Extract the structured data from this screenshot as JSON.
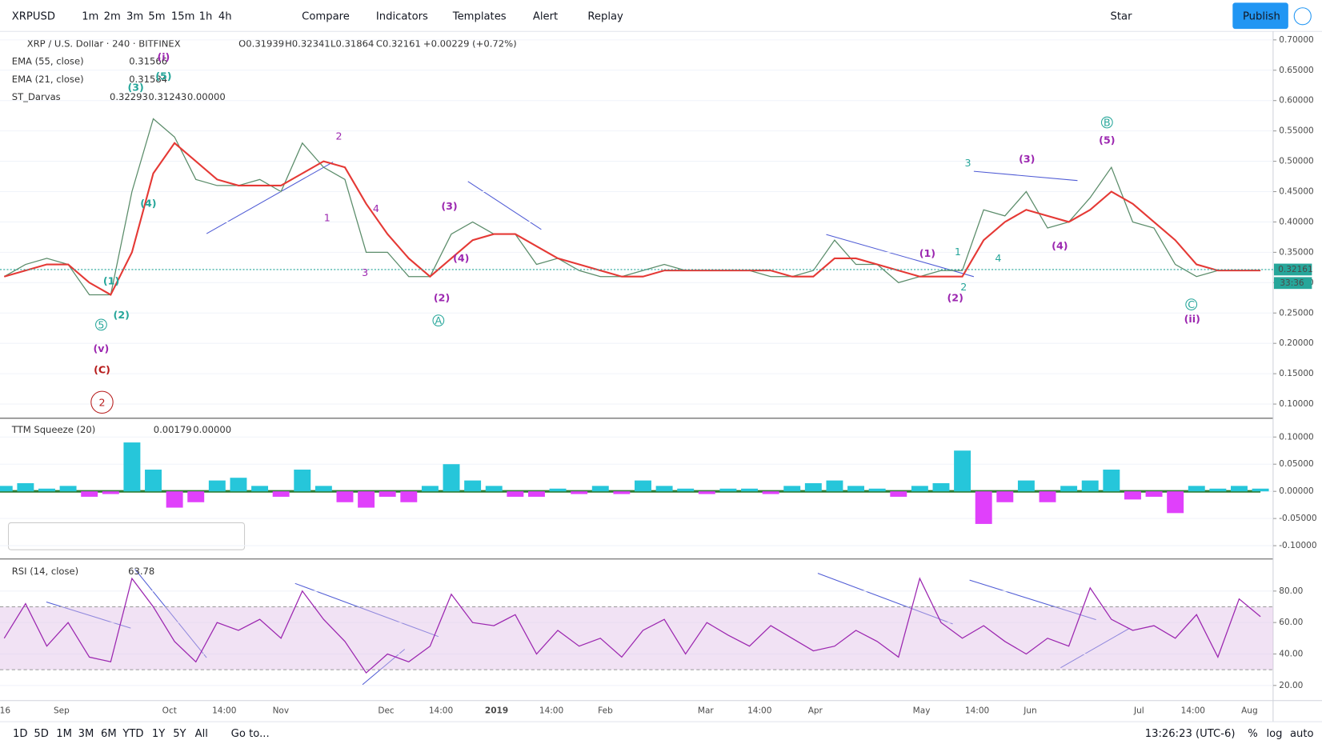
{
  "toolbar": {
    "symbol": "XRPUSD",
    "intervals": [
      "1m",
      "2m",
      "3m",
      "5m",
      "15m",
      "1h",
      "4h"
    ],
    "compare": "Compare",
    "indicators": "Indicators",
    "templates": "Templates",
    "alert": "Alert",
    "replay": "Replay",
    "star": "Star",
    "publish": "Publish"
  },
  "legend": {
    "title": "XRP / U.S. Dollar · 240 · BITFINEX",
    "open": "O0.31939",
    "high": "H0.32341",
    "low": "L0.31864",
    "close": "C0.32161",
    "change": "+0.00229 (+0.72%)",
    "ema55": "EMA (55, close)",
    "ema55_value": "0.31566",
    "ema21": "EMA (21, close)",
    "ema21_value": "0.31584",
    "darvas": "ST_Darvas",
    "darvas_values": [
      "0.32293",
      "0.31243",
      "0.00000"
    ],
    "squeeze": "TTM Squeeze (20)",
    "squeeze_values": [
      "0.00179",
      "0.00000"
    ],
    "rsi": "RSI (14, close)",
    "rsi_value": "63.78"
  },
  "last_price": 0.32161,
  "countdown": "33:36",
  "time_axis": [
    "16",
    "Sep",
    "Oct",
    "14:00",
    "Nov",
    "Dec",
    "14:00",
    "2019",
    "14:00",
    "Feb",
    "Mar",
    "14:00",
    "Apr",
    "May",
    "14:00",
    "Jun",
    "Jul",
    "14:00",
    "Aug"
  ],
  "bottom_bar": {
    "ranges": [
      "1D",
      "5D",
      "1M",
      "3M",
      "6M",
      "YTD",
      "1Y",
      "5Y",
      "All"
    ],
    "goto": "Go to...",
    "clock": "13:26:23 (UTC-6)",
    "percent": "%",
    "log": "log",
    "auto": "auto"
  },
  "annotations": [
    {
      "text": "(i)",
      "color": "#9c27b0"
    },
    {
      "text": "(5)",
      "color": "#26a69a"
    },
    {
      "text": "(3)",
      "color": "#26a69a"
    },
    {
      "text": "(4)",
      "color": "#26a69a"
    },
    {
      "text": "(1)",
      "color": "#26a69a"
    },
    {
      "text": "(2)",
      "color": "#26a69a"
    },
    {
      "text": "5",
      "color": "#26a69a",
      "circled": true
    },
    {
      "text": "(v)",
      "color": "#9c27b0"
    },
    {
      "text": "(C)",
      "color": "#b71c1c"
    },
    {
      "text": "2",
      "color": "#b71c1c",
      "circled": true
    },
    {
      "text": "1",
      "color": "#9c27b0"
    },
    {
      "text": "2",
      "color": "#9c27b0"
    },
    {
      "text": "3",
      "color": "#9c27b0"
    },
    {
      "text": "4",
      "color": "#9c27b0"
    },
    {
      "text": "(3)",
      "color": "#9c27b0"
    },
    {
      "text": "(4)",
      "color": "#9c27b0"
    },
    {
      "text": "(2)",
      "color": "#9c27b0"
    },
    {
      "text": "A",
      "color": "#26a69a",
      "circled": true
    },
    {
      "text": "(1)",
      "color": "#9c27b0"
    },
    {
      "text": "(2)",
      "color": "#9c27b0"
    },
    {
      "text": "1",
      "color": "#26a69a"
    },
    {
      "text": "2",
      "color": "#26a69a"
    },
    {
      "text": "3",
      "color": "#26a69a"
    },
    {
      "text": "4",
      "color": "#26a69a"
    },
    {
      "text": "(3)",
      "color": "#9c27b0"
    },
    {
      "text": "(4)",
      "color": "#9c27b0"
    },
    {
      "text": "B",
      "color": "#26a69a",
      "circled": true
    },
    {
      "text": "(5)",
      "color": "#9c27b0"
    },
    {
      "text": "C",
      "color": "#26a69a",
      "circled": true
    },
    {
      "text": "(ii)",
      "color": "#9c27b0"
    }
  ],
  "chart_data": [
    {
      "type": "line",
      "ylim": [
        0.078,
        0.714
      ],
      "yticks": [
        {
          "value": 0.7,
          "label": "0.70000"
        },
        {
          "value": 0.65,
          "label": "0.65000"
        },
        {
          "value": 0.6,
          "label": "0.60000"
        },
        {
          "value": 0.55,
          "label": "0.55000"
        },
        {
          "value": 0.5,
          "label": "0.50000"
        },
        {
          "value": 0.45,
          "label": "0.45000"
        },
        {
          "value": 0.4,
          "label": "0.40000"
        },
        {
          "value": 0.35,
          "label": "0.35000"
        },
        {
          "value": 0.3,
          "label": "0.30000"
        },
        {
          "value": 0.25,
          "label": "0.25000"
        },
        {
          "value": 0.2,
          "label": "0.20000"
        },
        {
          "value": 0.15,
          "label": "0.15000"
        },
        {
          "value": 0.1,
          "label": "0.10000"
        }
      ],
      "series": [
        {
          "color": "#5b8c6a",
          "values": [
            0.31,
            0.33,
            0.34,
            0.33,
            0.28,
            0.28,
            0.45,
            0.57,
            0.54,
            0.47,
            0.46,
            0.46,
            0.47,
            0.45,
            0.53,
            0.49,
            0.47,
            0.35,
            0.35,
            0.31,
            0.31,
            0.38,
            0.4,
            0.38,
            0.38,
            0.33,
            0.34,
            0.32,
            0.31,
            0.31,
            0.32,
            0.33,
            0.32,
            0.32,
            0.32,
            0.32,
            0.31,
            0.31,
            0.32,
            0.37,
            0.33,
            0.33,
            0.3,
            0.31,
            0.32,
            0.32,
            0.42,
            0.41,
            0.45,
            0.39,
            0.4,
            0.44,
            0.49,
            0.4,
            0.39,
            0.33,
            0.31,
            0.32,
            0.32,
            0.32
          ]
        },
        {
          "color": "#e53935",
          "values": [
            0.31,
            0.32,
            0.33,
            0.33,
            0.3,
            0.28,
            0.35,
            0.48,
            0.53,
            0.5,
            0.47,
            0.46,
            0.46,
            0.46,
            0.48,
            0.5,
            0.49,
            0.43,
            0.38,
            0.34,
            0.31,
            0.34,
            0.37,
            0.38,
            0.38,
            0.36,
            0.34,
            0.33,
            0.32,
            0.31,
            0.31,
            0.32,
            0.32,
            0.32,
            0.32,
            0.32,
            0.32,
            0.31,
            0.31,
            0.34,
            0.34,
            0.33,
            0.32,
            0.31,
            0.31,
            0.31,
            0.37,
            0.4,
            0.42,
            0.41,
            0.4,
            0.42,
            0.45,
            0.43,
            0.4,
            0.37,
            0.33,
            0.32,
            0.32,
            0.32
          ]
        }
      ]
    },
    {
      "type": "bar",
      "ylim": [
        -0.123,
        0.133
      ],
      "positive_color": "#26c6da",
      "negative_color": "#e040fb",
      "yticks": [
        {
          "value": 0.1,
          "label": "0.10000"
        },
        {
          "value": 0.05,
          "label": "0.05000"
        },
        {
          "value": 0,
          "label": "0.00000"
        },
        {
          "value": -0.05,
          "label": "-0.05000"
        },
        {
          "value": -0.1,
          "label": "-0.10000"
        }
      ],
      "values": [
        0.01,
        0.015,
        0.005,
        0.01,
        -0.01,
        -0.005,
        0.09,
        0.04,
        -0.03,
        -0.02,
        0.02,
        0.025,
        0.01,
        -0.01,
        0.04,
        0.01,
        -0.02,
        -0.03,
        -0.01,
        -0.02,
        0.01,
        0.05,
        0.02,
        0.01,
        -0.01,
        -0.01,
        0.005,
        -0.005,
        0.01,
        -0.005,
        0.02,
        0.01,
        0.005,
        -0.005,
        0.005,
        0.005,
        -0.005,
        0.01,
        0.015,
        0.02,
        0.01,
        0.005,
        -0.01,
        0.01,
        0.015,
        0.075,
        -0.06,
        -0.02,
        0.02,
        -0.02,
        0.01,
        0.02,
        0.04,
        -0.015,
        -0.01,
        -0.04,
        0.01,
        0.005,
        0.01,
        0.005
      ]
    },
    {
      "type": "line",
      "ylim": [
        10.9,
        99.3
      ],
      "color": "#9c27b0",
      "band": [
        30,
        70
      ],
      "band_color": "#e1bee7",
      "yticks": [
        {
          "value": 80,
          "label": "80.00"
        },
        {
          "value": 60,
          "label": "60.00"
        },
        {
          "value": 40,
          "label": "40.00"
        },
        {
          "value": 20,
          "label": "20.00"
        }
      ],
      "values": [
        50,
        72,
        45,
        60,
        38,
        35,
        88,
        70,
        48,
        35,
        60,
        55,
        62,
        50,
        80,
        62,
        48,
        28,
        40,
        35,
        45,
        78,
        60,
        58,
        65,
        40,
        55,
        45,
        50,
        38,
        55,
        62,
        40,
        60,
        52,
        45,
        58,
        50,
        42,
        45,
        55,
        48,
        38,
        88,
        60,
        50,
        58,
        48,
        40,
        50,
        45,
        82,
        62,
        55,
        58,
        50,
        65,
        38,
        75,
        63.78
      ]
    }
  ]
}
